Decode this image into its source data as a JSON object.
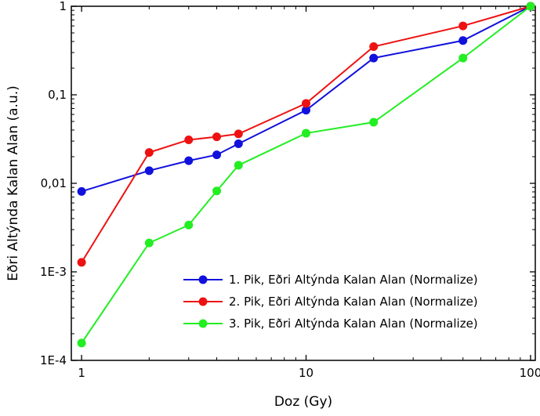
{
  "chart_data": {
    "type": "line",
    "title": "",
    "xlabel": "Doz (Gy)",
    "ylabel": "Eðri Altýnda Kalan Alan (a.u.)",
    "xscale": "log",
    "yscale": "log",
    "xlim": [
      0.9,
      105
    ],
    "ylim": [
      0.0001,
      1
    ],
    "x_ticks": [
      {
        "value": 1,
        "label": "1"
      },
      {
        "value": 10,
        "label": "10"
      },
      {
        "value": 100,
        "label": "100"
      }
    ],
    "y_ticks": [
      {
        "value": 0.0001,
        "label": "1E-4"
      },
      {
        "value": 0.001,
        "label": "1E-3"
      },
      {
        "value": 0.01,
        "label": "0,01"
      },
      {
        "value": 0.1,
        "label": "0,1"
      },
      {
        "value": 1,
        "label": "1"
      }
    ],
    "grid": false,
    "legend_position": "bottom-right",
    "series": [
      {
        "name": "1. Pik, Eðri Altýnda Kalan Alan (Normalize)",
        "color": "#1111dd",
        "x": [
          1,
          2,
          3,
          4,
          5,
          10,
          20,
          50,
          100
        ],
        "y": [
          0.0081,
          0.0139,
          0.018,
          0.021,
          0.028,
          0.067,
          0.26,
          0.41,
          1.0
        ]
      },
      {
        "name": "2. Pik, Eðri Altýnda Kalan Alan (Normalize)",
        "color": "#ee1111",
        "x": [
          1,
          2,
          3,
          4,
          5,
          10,
          20,
          50,
          100
        ],
        "y": [
          0.00128,
          0.0223,
          0.031,
          0.0335,
          0.0362,
          0.08,
          0.35,
          0.6,
          1.0
        ]
      },
      {
        "name": "3. Pik, Eðri Altýnda Kalan Alan (Normalize)",
        "color": "#22ee22",
        "x": [
          1,
          2,
          3,
          4,
          5,
          10,
          20,
          50,
          100
        ],
        "y": [
          0.000157,
          0.00212,
          0.00338,
          0.0082,
          0.016,
          0.0368,
          0.049,
          0.26,
          1.0
        ]
      }
    ]
  }
}
